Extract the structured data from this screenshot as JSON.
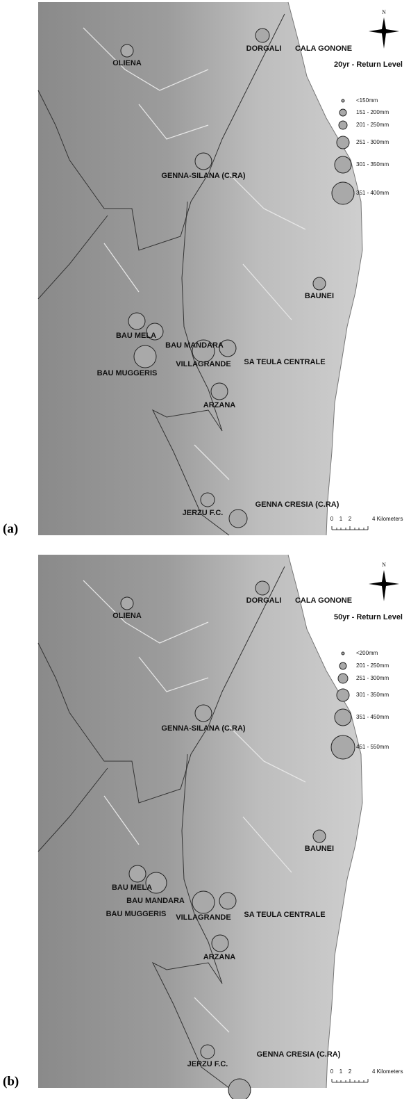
{
  "panels": [
    {
      "label": "(a)",
      "title": "20yr - Return Level",
      "north": "N",
      "stations": [
        "OLIENA",
        "DORGALI",
        "CALA GONONE",
        "GENNA-SILANA  (C.RA)",
        "BAUNEI",
        "BAU MELA",
        "BAU MANDARA",
        "BAU MUGGERIS",
        "VILLAGRANDE",
        "SA TEULA CENTRALE",
        "ARZANA",
        "JERZU F.C.",
        "GENNA CRESIA (C.RA)"
      ],
      "legend": [
        "<150mm",
        "151 - 200mm",
        "201 - 250mm",
        "251 - 300mm",
        "301 - 350mm",
        "351 - 400mm"
      ],
      "scale": [
        "0",
        "1",
        "2",
        "4 Kilometers"
      ]
    },
    {
      "label": "(b)",
      "title": "50yr - Return Level",
      "north": "N",
      "stations": [
        "OLIENA",
        "DORGALI",
        "CALA GONONE",
        "GENNA-SILANA  (C.RA)",
        "BAUNEI",
        "BAU MELA",
        "BAU MANDARA",
        "BAU MUGGERIS",
        "VILLAGRANDE",
        "SA TEULA CENTRALE",
        "ARZANA",
        "JERZU F.C.",
        "GENNA CRESIA (C.RA)"
      ],
      "legend": [
        "<200mm",
        "201 - 250mm",
        "251 - 300mm",
        "301 - 350mm",
        "351 - 450mm",
        "451 - 550mm"
      ],
      "scale": [
        "0",
        "1",
        "2",
        "4 Kilometers"
      ]
    }
  ]
}
